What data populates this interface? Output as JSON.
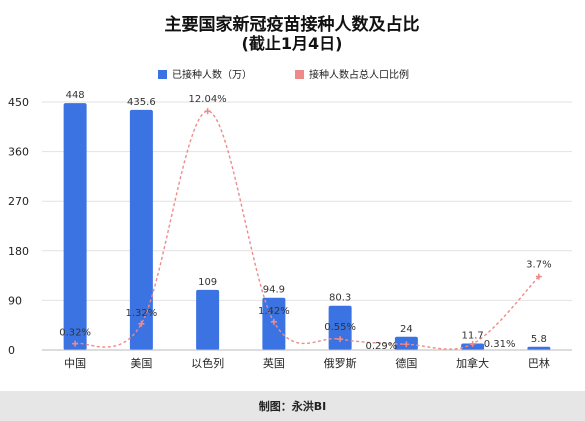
{
  "footer": {
    "credit": "制图：永洪BI"
  },
  "chart_data": {
    "type": "bar",
    "title": "主要国家新冠疫苗接种人数及占比",
    "subtitle": "(截止1月4日)",
    "categories": [
      "中国",
      "美国",
      "以色列",
      "英国",
      "俄罗斯",
      "德国",
      "加拿大",
      "巴林"
    ],
    "series": [
      {
        "name": "已接种人数（万）",
        "type": "bar",
        "axis": "left",
        "color": "#3b73e3",
        "values": [
          448,
          435.6,
          109,
          94.9,
          80.3,
          24,
          11.7,
          5.8
        ],
        "labels": [
          "448",
          "435.6",
          "109",
          "94.9",
          "80.3",
          "24",
          "11.7",
          "5.8"
        ]
      },
      {
        "name": "接种人数占总人口比例",
        "type": "line",
        "axis": "right",
        "color": "#ee8a8a",
        "values": [
          0.32,
          1.32,
          12.04,
          1.42,
          0.55,
          0.29,
          0.31,
          3.7
        ],
        "labels": [
          "0.32%",
          "1.32%",
          "12.04%",
          "1.42%",
          "0.55%",
          "0.29%",
          "0.31%",
          "3.7%"
        ]
      }
    ],
    "y_left": {
      "min": 0,
      "max": 450,
      "ticks": [
        "0",
        "90",
        "180",
        "270",
        "360",
        "450"
      ]
    },
    "y_right": {
      "min": 0,
      "max": 12.5
    },
    "legend_position": "top-center",
    "grid": true
  }
}
